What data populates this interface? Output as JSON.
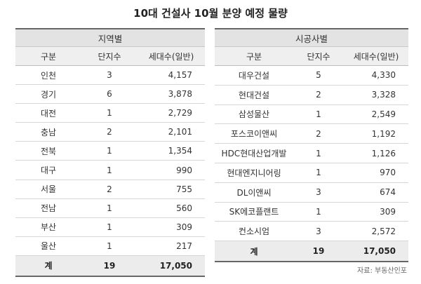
{
  "title": "10대 건설사 10월 분양 예정 물량",
  "region_table": {
    "group_label": "지역별",
    "headers": [
      "구분",
      "단지수",
      "세대수(일반)"
    ],
    "rows": [
      [
        "인천",
        "3",
        "4,157"
      ],
      [
        "경기",
        "6",
        "3,878"
      ],
      [
        "대전",
        "1",
        "2,729"
      ],
      [
        "충남",
        "2",
        "2,101"
      ],
      [
        "전북",
        "1",
        "1,354"
      ],
      [
        "대구",
        "1",
        "990"
      ],
      [
        "서울",
        "2",
        "755"
      ],
      [
        "전남",
        "1",
        "560"
      ],
      [
        "부산",
        "1",
        "309"
      ],
      [
        "울산",
        "1",
        "217"
      ]
    ],
    "total": [
      "계",
      "19",
      "17,050"
    ]
  },
  "builder_table": {
    "group_label": "시공사별",
    "headers": [
      "구분",
      "단지수",
      "세대수(일반)"
    ],
    "rows": [
      [
        "대우건설",
        "5",
        "4,330"
      ],
      [
        "현대건설",
        "2",
        "3,328"
      ],
      [
        "삼성물산",
        "1",
        "2,549"
      ],
      [
        "포스코이앤씨",
        "2",
        "1,192"
      ],
      [
        "HDC현대산업개발",
        "1",
        "1,126"
      ],
      [
        "현대엔지니어링",
        "1",
        "970"
      ],
      [
        "DL이앤씨",
        "3",
        "674"
      ],
      [
        "SK에코플랜트",
        "1",
        "309"
      ],
      [
        "컨소시엄",
        "3",
        "2,572"
      ]
    ],
    "total": [
      "계",
      "19",
      "17,050"
    ]
  },
  "source": "자료: 부동산인포"
}
